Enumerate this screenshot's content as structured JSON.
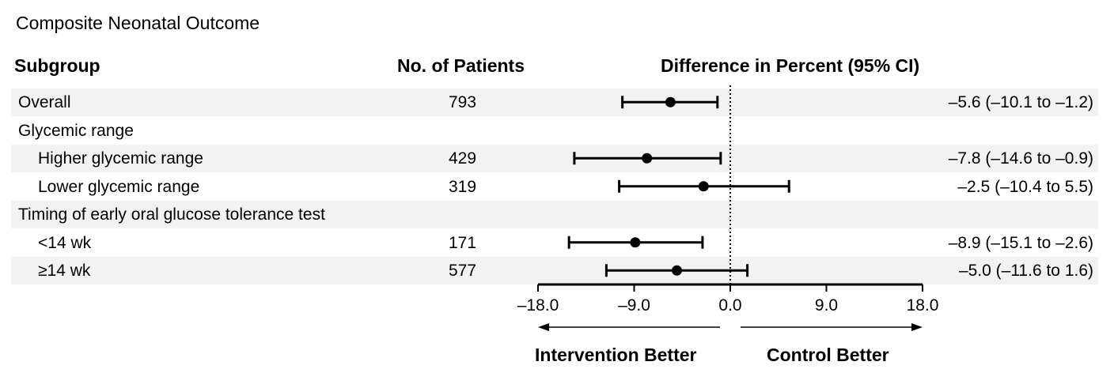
{
  "title": "Composite Neonatal Outcome",
  "headers": {
    "subgroup": "Subgroup",
    "patients": "No. of Patients",
    "difference": "Difference in Percent (95% CI)"
  },
  "chart_data": {
    "type": "forest",
    "xlim": [
      -18.0,
      18.0
    ],
    "xticks": [
      "–18.0",
      "–9.0",
      "0.0",
      "9.0",
      "18.0"
    ],
    "xtick_values": [
      -18,
      -9,
      0,
      9,
      18
    ],
    "reference_line": 0,
    "left_direction_label": "Intervention Better",
    "right_direction_label": "Control Better",
    "rows": [
      {
        "label": "Overall",
        "indent": 0,
        "n": "793",
        "estimate": -5.6,
        "lower": -10.1,
        "upper": -1.2,
        "ci_text": "–5.6 (–10.1 to –1.2)",
        "shaded": true
      },
      {
        "label": "Glycemic range",
        "indent": 0,
        "n": "",
        "estimate": null,
        "lower": null,
        "upper": null,
        "ci_text": "",
        "shaded": false
      },
      {
        "label": "Higher glycemic range",
        "indent": 1,
        "n": "429",
        "estimate": -7.8,
        "lower": -14.6,
        "upper": -0.9,
        "ci_text": "–7.8 (–14.6 to –0.9)",
        "shaded": true
      },
      {
        "label": "Lower glycemic range",
        "indent": 1,
        "n": "319",
        "estimate": -2.5,
        "lower": -10.4,
        "upper": 5.5,
        "ci_text": "–2.5 (–10.4 to 5.5)",
        "shaded": false
      },
      {
        "label": "Timing of early oral glucose tolerance test",
        "indent": 0,
        "n": "",
        "estimate": null,
        "lower": null,
        "upper": null,
        "ci_text": "",
        "shaded": true
      },
      {
        "label": "<14 wk",
        "indent": 1,
        "n": "171",
        "estimate": -8.9,
        "lower": -15.1,
        "upper": -2.6,
        "ci_text": "–8.9 (–15.1 to –2.6)",
        "shaded": false
      },
      {
        "label": "≥14 wk",
        "indent": 1,
        "n": "577",
        "estimate": -5.0,
        "lower": -11.6,
        "upper": 1.6,
        "ci_text": "–5.0 (–11.6 to 1.6)",
        "shaded": true
      }
    ]
  }
}
